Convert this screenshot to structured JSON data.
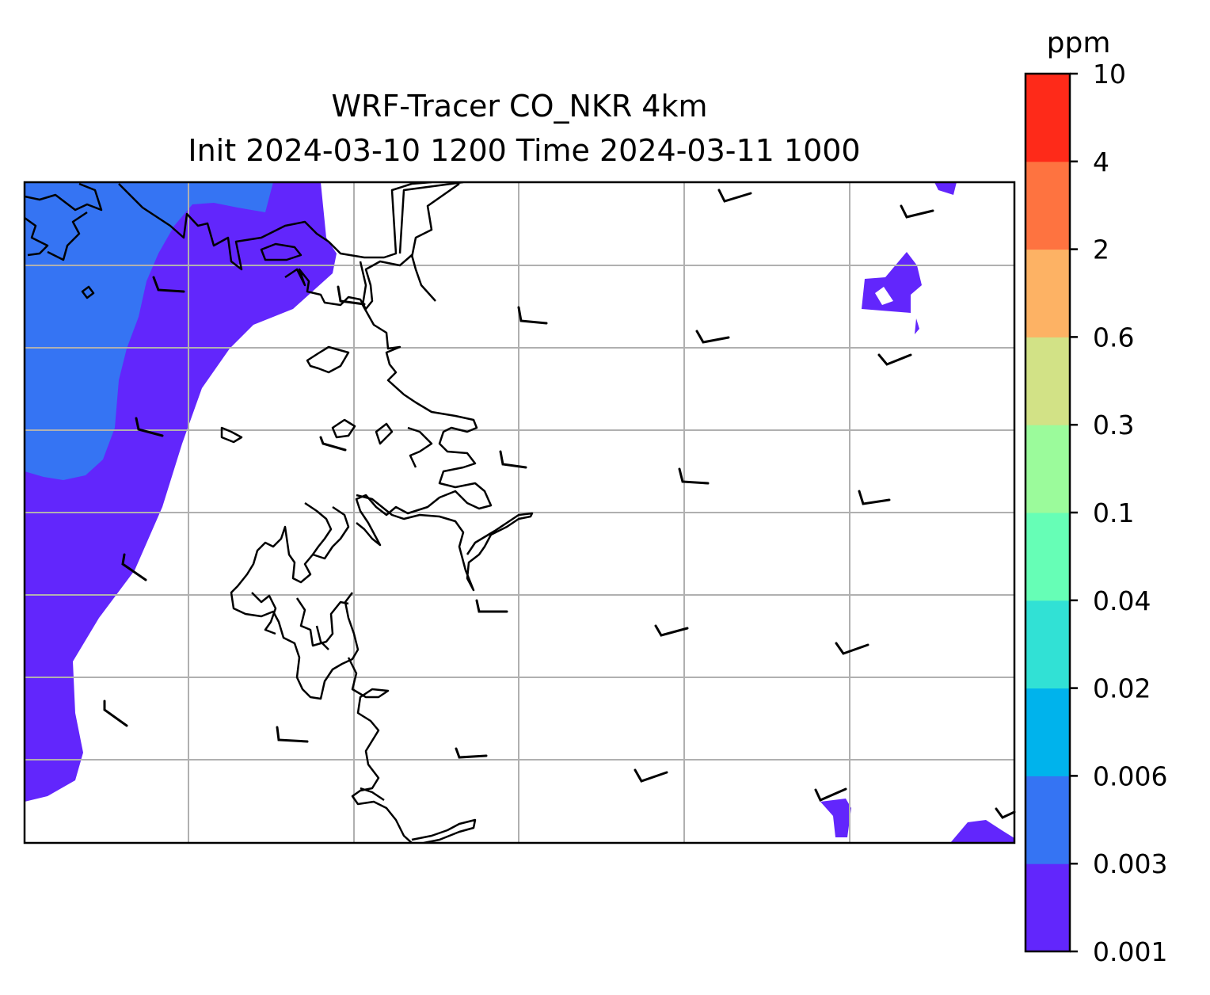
{
  "title": {
    "line1": "WRF-Tracer CO_NKR 4km",
    "line2": "Init 2024-03-10 1200 Time 2024-03-11 1000"
  },
  "colorbar": {
    "unit": "ppm",
    "levels": [
      "0.001",
      "0.003",
      "0.006",
      "0.02",
      "0.04",
      "0.1",
      "0.3",
      "0.6",
      "2",
      "4",
      "10"
    ],
    "colors": [
      "#6226fc",
      "#3574f3",
      "#00b3ec",
      "#31e1d5",
      "#66feb6",
      "#9bfb9b",
      "#d2e286",
      "#fdb264",
      "#fe7340",
      "#fe2a19"
    ]
  },
  "map_data": {
    "type": "filled-contour",
    "field": "CO tracer concentration",
    "grid": "on",
    "wind": "barbs"
  }
}
